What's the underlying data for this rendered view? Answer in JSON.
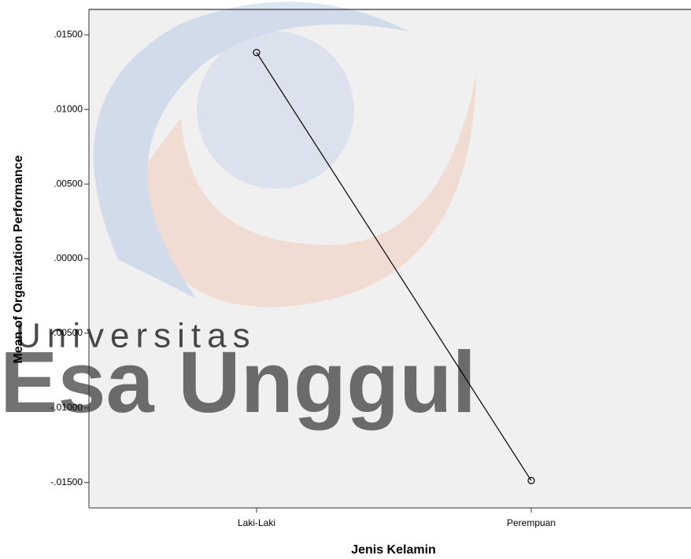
{
  "chart_data": {
    "type": "line",
    "x_label": "Jenis Kelamin",
    "y_label": "Mean of Organization Performance",
    "categories": [
      "Laki-Laki",
      "Perempuan"
    ],
    "values": [
      0.01381,
      -0.01487
    ],
    "color": "#000000",
    "ylim": [
      -0.0167,
      0.0167
    ],
    "yticks": [
      {
        "value": 0.015,
        "label": ".01500"
      },
      {
        "value": 0.01,
        "label": ".01000"
      },
      {
        "value": 0.005,
        "label": ".00500"
      },
      {
        "value": 0,
        "label": ".00000"
      },
      {
        "value": -0.005,
        "label": "-.00500"
      },
      {
        "value": -0.01,
        "label": "-.01000"
      },
      {
        "value": -0.015,
        "label": "-.01500"
      }
    ],
    "markers": true,
    "grid": false
  },
  "watermark": {
    "line1": "Universitas",
    "line2": "Esa Unggul"
  }
}
